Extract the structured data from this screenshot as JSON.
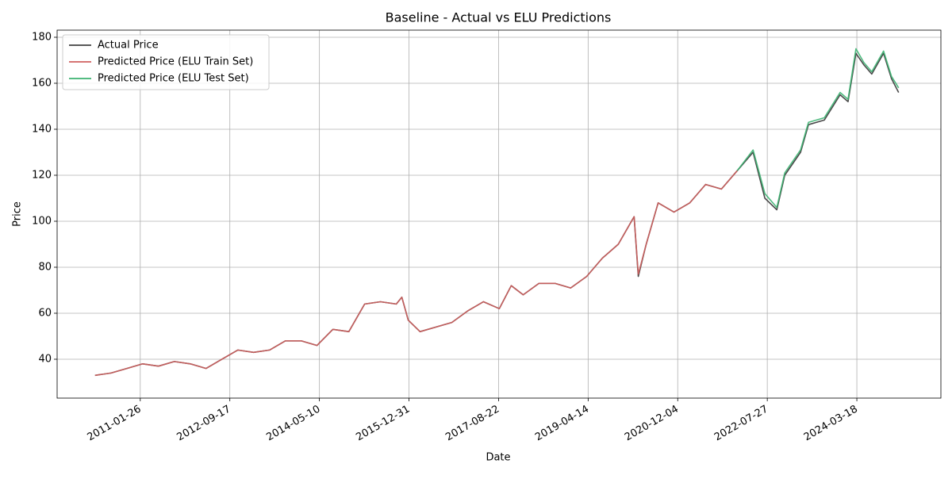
{
  "chart_data": {
    "type": "line",
    "title": "Baseline - Actual vs ELU Predictions",
    "x_label": "Date",
    "y_label": "Price",
    "x": [
      "2010-03-29",
      "2010-07-14",
      "2010-10-28",
      "2011-02-11",
      "2011-05-28",
      "2011-09-11",
      "2011-12-27",
      "2012-04-11",
      "2012-07-26",
      "2012-11-09",
      "2013-02-23",
      "2013-06-10",
      "2013-09-24",
      "2014-01-08",
      "2014-04-24",
      "2014-08-08",
      "2014-11-23",
      "2015-03-09",
      "2015-06-23",
      "2015-10-07",
      "2015-11-13",
      "2015-12-26",
      "2016-03-14",
      "2016-06-29",
      "2016-10-13",
      "2017-01-27",
      "2017-05-13",
      "2017-08-27",
      "2017-11-15",
      "2018-02-03",
      "2018-05-20",
      "2018-09-03",
      "2018-12-18",
      "2019-04-04",
      "2019-07-19",
      "2019-11-02",
      "2020-02-16",
      "2020-03-15",
      "2020-05-07",
      "2020-07-26",
      "2020-11-09",
      "2021-02-23",
      "2021-06-09",
      "2021-09-23",
      "2022-01-07",
      "2022-04-23",
      "2022-07-11",
      "2022-09-29",
      "2022-11-21",
      "2023-03-07",
      "2023-04-29",
      "2023-08-13",
      "2023-11-27",
      "2024-01-19",
      "2024-03-12",
      "2024-05-04",
      "2024-06-26",
      "2024-09-13",
      "2024-11-05",
      "2024-12-23"
    ],
    "series": [
      {
        "name": "Actual Price",
        "color": "#404040",
        "values": [
          33,
          34,
          36,
          38,
          37,
          39,
          38,
          36,
          40,
          44,
          43,
          44,
          48,
          48,
          46,
          53,
          52,
          64,
          65,
          64,
          67,
          57,
          52,
          54,
          56,
          61,
          65,
          62,
          72,
          68,
          73,
          73,
          71,
          76,
          84,
          90,
          102,
          76,
          90,
          108,
          104,
          108,
          116,
          114,
          122,
          130,
          110,
          105,
          120,
          130,
          142,
          144,
          155,
          152,
          173,
          168,
          164,
          173,
          162,
          156
        ]
      },
      {
        "name": "Predicted Price (ELU Train Set)",
        "color": "#d0615f",
        "values": [
          33,
          34,
          36,
          38,
          37,
          39,
          38,
          36,
          40,
          44,
          43,
          44,
          48,
          48,
          46,
          53,
          52,
          64,
          65,
          64,
          67,
          57,
          52,
          54,
          56,
          61,
          65,
          62,
          72,
          68,
          73,
          73,
          71,
          76,
          84,
          90,
          102,
          77,
          90,
          108,
          104,
          108,
          116,
          114,
          122,
          null,
          null,
          null,
          null,
          null,
          null,
          null,
          null,
          null,
          null,
          null,
          null,
          null,
          null,
          null
        ]
      },
      {
        "name": "Predicted Price (ELU Test Set)",
        "color": "#3cb371",
        "values": [
          null,
          null,
          null,
          null,
          null,
          null,
          null,
          null,
          null,
          null,
          null,
          null,
          null,
          null,
          null,
          null,
          null,
          null,
          null,
          null,
          null,
          null,
          null,
          null,
          null,
          null,
          null,
          null,
          null,
          null,
          null,
          null,
          null,
          null,
          null,
          null,
          null,
          null,
          null,
          null,
          null,
          null,
          null,
          null,
          122,
          131,
          112,
          106,
          121,
          131,
          143,
          145,
          156,
          153,
          175,
          169,
          165,
          174,
          163,
          158
        ]
      }
    ],
    "xlim": [
      "2009-07-18",
      "2025-10-02"
    ],
    "xticks": [
      "2011-01-26",
      "2012-09-17",
      "2014-05-10",
      "2015-12-31",
      "2017-08-22",
      "2019-04-14",
      "2020-12-04",
      "2022-07-27",
      "2024-03-18"
    ],
    "ylim": [
      23.1,
      183.1
    ],
    "yticks": [
      40,
      60,
      80,
      100,
      120,
      140,
      160,
      180
    ],
    "grid": true,
    "legend": "upper left"
  }
}
